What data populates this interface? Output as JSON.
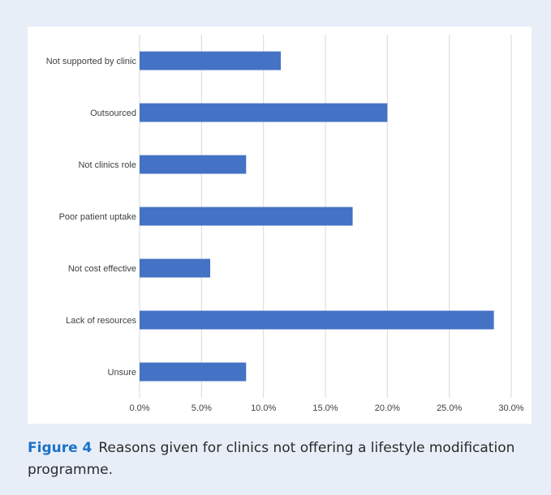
{
  "chart_data": {
    "type": "bar",
    "orientation": "horizontal",
    "categories": [
      "Not supported by clinic",
      "Outsourced",
      "Not clinics role",
      "Poor patient uptake",
      "Not cost effective",
      "Lack of resources",
      "Unsure"
    ],
    "values": [
      11.4,
      20.0,
      8.6,
      17.2,
      5.7,
      28.6,
      8.6
    ],
    "x_ticks": [
      "0.0%",
      "5.0%",
      "10.0%",
      "15.0%",
      "20.0%",
      "25.0%",
      "30.0%"
    ],
    "xlim": [
      0,
      30
    ],
    "grid": true,
    "bar_color": "#4472c4",
    "title": "",
    "xlabel": "",
    "ylabel": ""
  },
  "caption": {
    "label": "Figure 4",
    "text": "Reasons given for clinics not offering a lifestyle modification programme."
  },
  "colors": {
    "panel_background": "#e8eef8",
    "gridline": "#d9d9d9",
    "caption_label": "#1a73c9"
  }
}
